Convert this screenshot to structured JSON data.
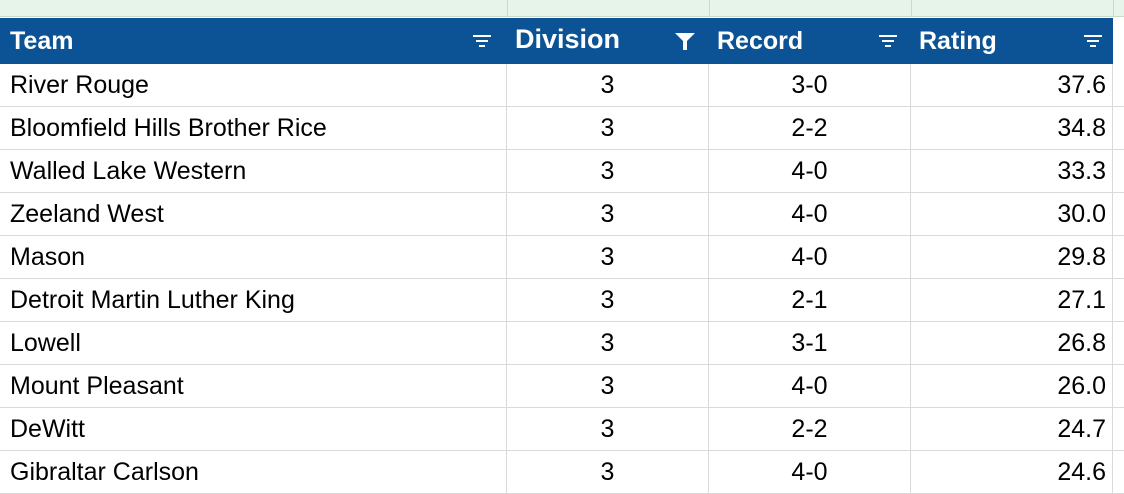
{
  "header": {
    "team": "Team",
    "division": "Division",
    "record": "Record",
    "rating": "Rating"
  },
  "header_icons": {
    "team": "filter-lines-icon",
    "division": "filter-funnel-active-icon",
    "record": "filter-lines-icon",
    "rating": "filter-lines-icon"
  },
  "colors": {
    "header_bg": "#0b5394",
    "header_text": "#ffffff",
    "grid": "#dadada",
    "top_strip": "#e6f4ea"
  },
  "rows": [
    {
      "team": "River Rouge",
      "division": "3",
      "record": "3-0",
      "rating": "37.6"
    },
    {
      "team": "Bloomfield Hills Brother Rice",
      "division": "3",
      "record": "2-2",
      "rating": "34.8"
    },
    {
      "team": "Walled Lake Western",
      "division": "3",
      "record": "4-0",
      "rating": "33.3"
    },
    {
      "team": "Zeeland West",
      "division": "3",
      "record": "4-0",
      "rating": "30.0"
    },
    {
      "team": "Mason",
      "division": "3",
      "record": "4-0",
      "rating": "29.8"
    },
    {
      "team": "Detroit Martin Luther King",
      "division": "3",
      "record": "2-1",
      "rating": "27.1"
    },
    {
      "team": "Lowell",
      "division": "3",
      "record": "3-1",
      "rating": "26.8"
    },
    {
      "team": "Mount Pleasant",
      "division": "3",
      "record": "4-0",
      "rating": "26.0"
    },
    {
      "team": "DeWitt",
      "division": "3",
      "record": "2-2",
      "rating": "24.7"
    },
    {
      "team": "Gibraltar Carlson",
      "division": "3",
      "record": "4-0",
      "rating": "24.6"
    }
  ]
}
